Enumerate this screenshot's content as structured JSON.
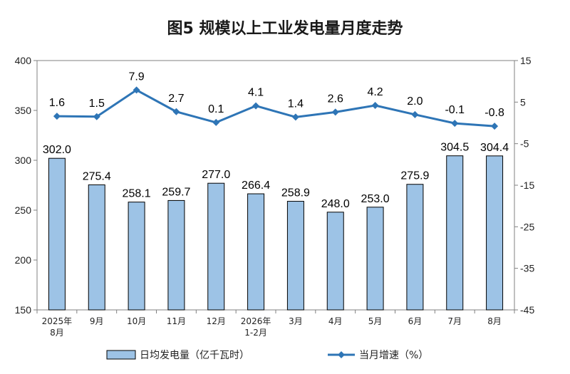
{
  "chart_data": {
    "type": "bar",
    "title": "图5  规模以上工业发电量月度走势",
    "categories": [
      [
        "2025年",
        "8月"
      ],
      [
        "9月"
      ],
      [
        "10月"
      ],
      [
        "11月"
      ],
      [
        "12月"
      ],
      [
        "2026年",
        "1-2月"
      ],
      [
        "3月"
      ],
      [
        "4月"
      ],
      [
        "5月"
      ],
      [
        "6月"
      ],
      [
        "7月"
      ],
      [
        "8月"
      ]
    ],
    "series": [
      {
        "name": "日均发电量（亿千瓦时）",
        "type": "bar",
        "axis": "left",
        "values": [
          302.0,
          275.4,
          258.1,
          259.7,
          277.0,
          266.4,
          258.9,
          248.0,
          253.0,
          275.9,
          304.5,
          304.4
        ],
        "labels": [
          "302.0",
          "275.4",
          "258.1",
          "259.7",
          "277.0",
          "266.4",
          "258.9",
          "248.0",
          "253.0",
          "275.9",
          "304.5",
          "304.4"
        ],
        "color": "#9dc3e6"
      },
      {
        "name": "当月增速（%）",
        "type": "line",
        "axis": "right",
        "values": [
          1.6,
          1.5,
          7.9,
          2.7,
          0.1,
          4.1,
          1.4,
          2.6,
          4.2,
          2.0,
          -0.1,
          -0.8
        ],
        "labels": [
          "1.6",
          "1.5",
          "7.9",
          "2.7",
          "0.1",
          "4.1",
          "1.4",
          "2.6",
          "4.2",
          "2.0",
          "-0.1",
          "-0.8"
        ],
        "color": "#2e75b6"
      }
    ],
    "left_axis": {
      "min": 150,
      "max": 400,
      "ticks": [
        "150",
        "200",
        "250",
        "300",
        "350",
        "400"
      ]
    },
    "right_axis": {
      "min": -45,
      "max": 15,
      "ticks": [
        "-45",
        "-35",
        "-25",
        "-15",
        "-5",
        "5",
        "15"
      ]
    },
    "legend_position": "bottom",
    "grid": false,
    "colors": {
      "bar_fill": "#9dc3e6",
      "bar_stroke": "#000000",
      "line": "#2e75b6",
      "axis": "#808080"
    }
  }
}
